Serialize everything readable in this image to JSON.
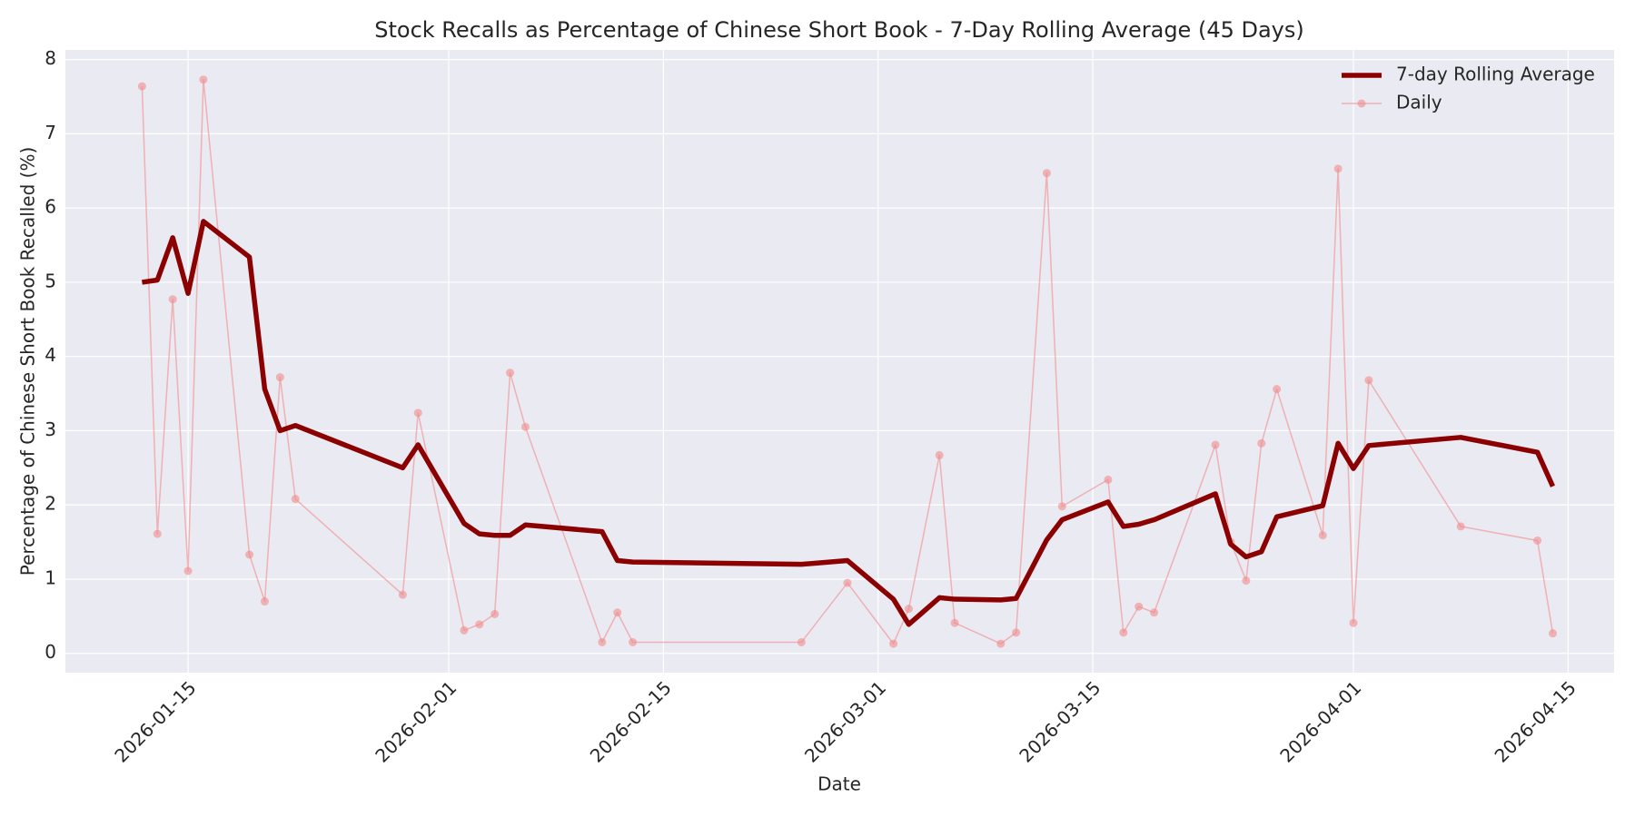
{
  "chart_data": {
    "type": "line",
    "title": "Stock Recalls as Percentage of Chinese Short Book - 7-Day Rolling Average (45 Days)",
    "x_label": "Date",
    "y_label": "Percentage of Chinese Short Book Recalled (%)",
    "x": [
      "2026-01-12",
      "2026-01-13",
      "2026-01-14",
      "2026-01-15",
      "2026-01-16",
      "2026-01-19",
      "2026-01-20",
      "2026-01-21",
      "2026-01-22",
      "2026-01-29",
      "2026-01-30",
      "2026-02-02",
      "2026-02-03",
      "2026-02-04",
      "2026-02-05",
      "2026-02-06",
      "2026-02-11",
      "2026-02-12",
      "2026-02-13",
      "2026-02-24",
      "2026-02-27",
      "2026-03-02",
      "2026-03-03",
      "2026-03-05",
      "2026-03-06",
      "2026-03-09",
      "2026-03-10",
      "2026-03-12",
      "2026-03-13",
      "2026-03-16",
      "2026-03-17",
      "2026-03-18",
      "2026-03-19",
      "2026-03-23",
      "2026-03-24",
      "2026-03-25",
      "2026-03-26",
      "2026-03-27",
      "2026-03-30",
      "2026-03-31",
      "2026-04-01",
      "2026-04-02",
      "2026-04-08",
      "2026-04-13",
      "2026-04-14"
    ],
    "series": [
      {
        "name": "7-day Rolling Average",
        "color": "#8b0000",
        "marker": false,
        "values": [
          5.0,
          5.03,
          5.6,
          4.85,
          5.82,
          5.34,
          3.56,
          3.0,
          3.07,
          2.5,
          2.81,
          1.75,
          1.61,
          1.59,
          1.59,
          1.73,
          1.64,
          1.25,
          1.23,
          1.2,
          1.25,
          0.73,
          0.39,
          0.75,
          0.73,
          0.72,
          0.74,
          1.53,
          1.8,
          2.04,
          1.71,
          1.74,
          1.8,
          2.15,
          1.47,
          1.3,
          1.37,
          1.84,
          1.99,
          2.83,
          2.49,
          2.8,
          2.91,
          2.71,
          2.25
        ]
      },
      {
        "name": "Daily",
        "color": "#f08a8a",
        "marker": true,
        "values": [
          7.64,
          1.61,
          4.77,
          1.11,
          7.73,
          1.33,
          0.7,
          3.72,
          2.08,
          0.79,
          3.24,
          0.31,
          0.39,
          0.53,
          3.78,
          3.05,
          0.15,
          0.55,
          0.15,
          0.15,
          0.95,
          0.13,
          0.6,
          2.67,
          0.41,
          0.13,
          0.28,
          6.47,
          1.98,
          2.34,
          0.28,
          0.63,
          0.55,
          2.81,
          1.5,
          0.98,
          2.83,
          3.56,
          1.59,
          6.53,
          0.41,
          3.68,
          1.71,
          1.52,
          0.27
        ]
      }
    ],
    "xlim": [
      "2026-01-07",
      "2026-04-18"
    ],
    "xticks": [
      "2026-01-15",
      "2026-02-01",
      "2026-02-15",
      "2026-03-01",
      "2026-03-15",
      "2026-04-01",
      "2026-04-15"
    ],
    "ylim": [
      -0.26,
      8.13
    ],
    "yticks": [
      0,
      1,
      2,
      3,
      4,
      5,
      6,
      7,
      8
    ],
    "grid": true,
    "legend": "upper right"
  }
}
